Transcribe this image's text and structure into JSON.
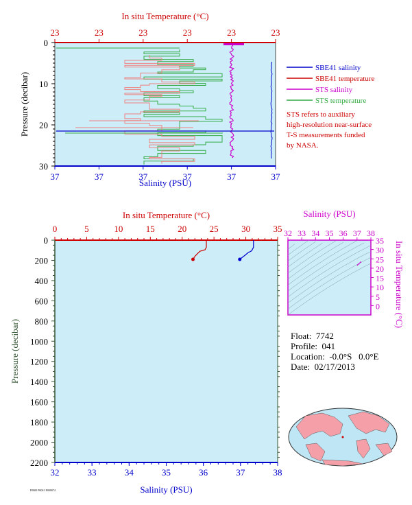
{
  "colors": {
    "plot_bg": "#cdeef8",
    "salinity": "#0000cc",
    "temperature": "#cc0000",
    "sts_salinity": "#cc00cc",
    "sts_temperature": "#33aa44",
    "pressure_axis": "#335533"
  },
  "top_panel": {
    "x_top_label": "In situ Temperature (°C)",
    "x_bottom_label": "Salinity (PSU)",
    "y_label": "Pressure (decibar)",
    "temperature_tick_labels": [
      "23",
      "23",
      "23",
      "23",
      "23",
      "23"
    ],
    "salinity_tick_labels": [
      "37",
      "37",
      "37",
      "37",
      "37",
      "37"
    ],
    "pressure_ticks": [
      0,
      10,
      20,
      30
    ],
    "ylim": [
      30,
      0
    ],
    "legend": [
      {
        "name": "SBE41 salinity",
        "color": "#0000cc"
      },
      {
        "name": "SBE41 temperature",
        "color": "#cc0000"
      },
      {
        "name": "STS salinity",
        "color": "#cc00cc"
      },
      {
        "name": "STS temperature",
        "color": "#33aa44"
      }
    ],
    "note_lines": [
      "STS refers to auxiliary",
      "high-resolution near-surface",
      "T-S measurements funded",
      "by NASA."
    ]
  },
  "chart_data": [
    {
      "type": "line",
      "title": "",
      "xlabel": "Salinity (PSU)",
      "x2label": "In situ Temperature (°C)",
      "ylabel": "Pressure (decibar)",
      "xlim": [
        32,
        38
      ],
      "x2lim": [
        0,
        35
      ],
      "ylim": [
        2200,
        0
      ],
      "x_ticks": [
        32,
        33,
        34,
        35,
        36,
        37,
        38
      ],
      "x2_ticks": [
        0,
        5,
        10,
        15,
        20,
        25,
        30,
        35
      ],
      "y_ticks": [
        0,
        200,
        400,
        600,
        800,
        1000,
        1200,
        1400,
        1600,
        1800,
        2000,
        2200
      ],
      "series": [
        {
          "name": "Temperature",
          "axis": "x2",
          "points": [
            [
              23.8,
              0
            ],
            [
              23.8,
              70
            ],
            [
              23.6,
              95
            ],
            [
              22.8,
              110
            ],
            [
              22.3,
              140
            ],
            [
              22.0,
              160
            ],
            [
              21.7,
              190
            ]
          ]
        },
        {
          "name": "Salinity",
          "axis": "x",
          "points": [
            [
              37.35,
              0
            ],
            [
              37.35,
              70
            ],
            [
              37.3,
              105
            ],
            [
              37.2,
              125
            ],
            [
              37.12,
              150
            ],
            [
              37.05,
              170
            ],
            [
              36.98,
              190
            ]
          ]
        }
      ]
    },
    {
      "type": "line",
      "title": "",
      "xlabel": "Salinity (PSU)",
      "ylabel": "In situ Temperature (°C)",
      "xlim": [
        32,
        38
      ],
      "ylim": [
        -5,
        35
      ],
      "x_ticks": [
        32,
        33,
        34,
        35,
        36,
        37,
        38
      ],
      "y_ticks": [
        0,
        5,
        10,
        15,
        20,
        25,
        30,
        35
      ],
      "series": [
        {
          "name": "T-S",
          "points": [
            [
              37.0,
              21.5
            ],
            [
              37.15,
              22.5
            ],
            [
              37.3,
              23.5
            ]
          ]
        }
      ]
    }
  ],
  "info": {
    "float": "Float:  7742",
    "profile": "Profile:  041",
    "location": "Location:  -0.0°S   0.0°E",
    "date": "Date:  02/17/2013"
  },
  "footer_id": "F0000 P0041 E000074"
}
